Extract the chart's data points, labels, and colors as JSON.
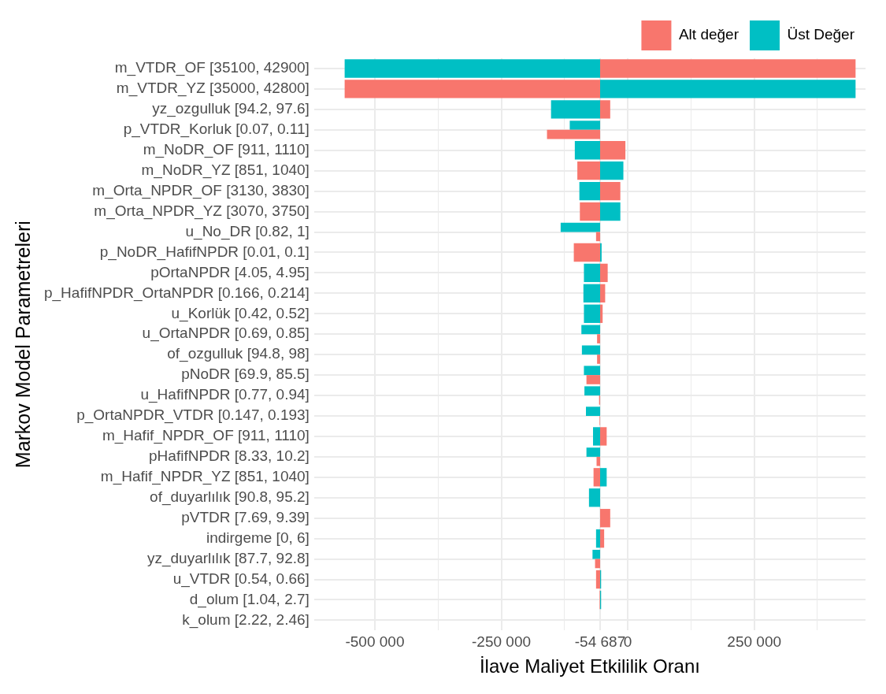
{
  "chart_data": {
    "type": "bar",
    "orientation": "horizontal",
    "xlabel": "İlave Maliyet Etkililik Oranı",
    "ylabel": "Markov Model Parametreleri",
    "categories": [
      "m_VTDR_OF [35100, 42900]",
      "m_VTDR_YZ [35000, 42800]",
      "yz_ozgulluk [94.2, 97.6]",
      "p_VTDR_Korluk [0.07, 0.11]",
      "m_NoDR_OF [911, 1110]",
      "m_NoDR_YZ [851, 1040]",
      "m_Orta_NPDR_OF [3130, 3830]",
      "m_Orta_NPDR_YZ [3070, 3750]",
      "u_No_DR [0.82, 1]",
      "p_NoDR_HafifNPDR [0.01, 0.1]",
      "pOrtaNPDR [4.05, 4.95]",
      "p_HafifNPDR_OrtaNPDR [0.166, 0.214]",
      "u_Korlük [0.42, 0.52]",
      "u_OrtaNPDR [0.69, 0.85]",
      "of_ozgulluk [94.8, 98]",
      "pNoDR [69.9, 85.5]",
      "u_HafifNPDR [0.77, 0.94]",
      "p_OrtaNPDR_VTDR [0.147, 0.193]",
      "m_Hafif_NPDR_OF [911, 1110]",
      "pHafifNPDR [8.33, 10.2]",
      "m_Hafif_NPDR_YZ [851, 1040]",
      "of_duyarlılık [90.8, 95.2]",
      "pVTDR [7.69, 9.39]",
      "indirgeme [0, 6]",
      "yz_duyarlılık [87.7, 92.8]",
      "u_VTDR [0.54, 0.66]",
      "d_olum [1.04, 2.7]",
      "k_olum [2.22, 2.46]"
    ],
    "series": [
      {
        "name": "Alt değer",
        "color": "#f8766d",
        "base": [
          -54687,
          -54687,
          -54687,
          -54687,
          -54687,
          -54687,
          -54687,
          -54687,
          -54687,
          -54687,
          -54687,
          -54687,
          -54687,
          -54687,
          -54687,
          -54687,
          -54687,
          -54687,
          -54687,
          -54687,
          -54687,
          null,
          -54687,
          -54687,
          -54687,
          -54687,
          -54687,
          null
        ],
        "values": [
          505000,
          -505000,
          20000,
          -105000,
          50000,
          -45000,
          40000,
          -40000,
          -8000,
          -52000,
          15000,
          10000,
          5000,
          -6000,
          -6000,
          -27000,
          -2000,
          -1000,
          13000,
          -7000,
          -13000,
          null,
          20000,
          8000,
          -10000,
          -8000,
          -1000,
          null
        ]
      },
      {
        "name": "Üst Değer",
        "color": "#00bfc4",
        "base": [
          -54687,
          -54687,
          -54687,
          -54687,
          -54687,
          -54687,
          -54687,
          -54687,
          -54687,
          -54687,
          -54687,
          -54687,
          -54687,
          -54687,
          -54687,
          -54687,
          -54687,
          -54687,
          -54687,
          -54687,
          -54687,
          -54687,
          null,
          -54687,
          -54687,
          -54687,
          -54687,
          null
        ],
        "values": [
          -505000,
          505000,
          -97000,
          -60000,
          -50000,
          46000,
          -41000,
          40000,
          -78000,
          3000,
          -32000,
          -33000,
          -32000,
          -37000,
          -36000,
          -32000,
          -31000,
          -28000,
          -14000,
          -27000,
          13000,
          -22000,
          null,
          -8000,
          -15000,
          2000,
          2000,
          null
        ]
      }
    ],
    "xlim": [
      -620000,
      470000
    ],
    "xticks": [
      {
        "value": -500000,
        "label": "-500 000"
      },
      {
        "value": -375000,
        "label": null
      },
      {
        "value": -250000,
        "label": "-250 000"
      },
      {
        "value": -125000,
        "label": null
      },
      {
        "value": -54687,
        "label": "-54 687"
      },
      {
        "value": 0,
        "label": "0"
      },
      {
        "value": 125000,
        "label": null
      },
      {
        "value": 250000,
        "label": "250 000"
      },
      {
        "value": 375000,
        "label": null
      }
    ],
    "grid": true,
    "legend": "top right"
  }
}
